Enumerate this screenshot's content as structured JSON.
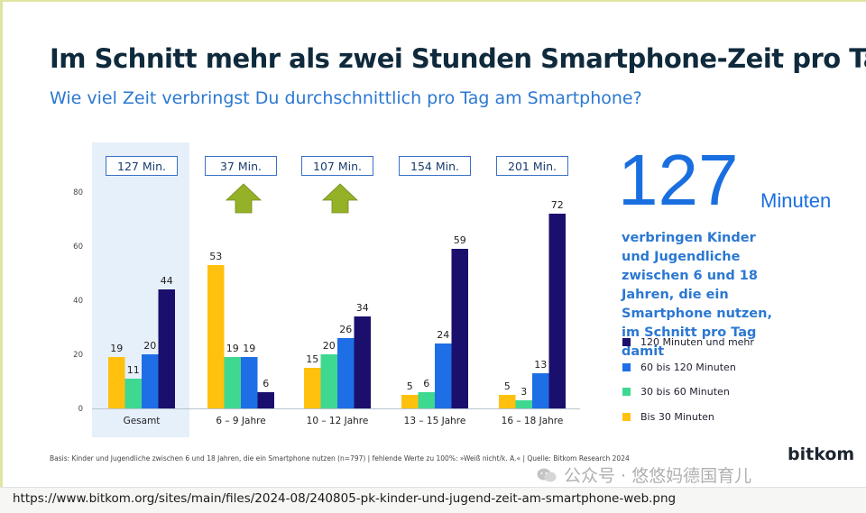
{
  "title": "Im Schnitt mehr als zwei Stunden Smartphone-Zeit pro Tag",
  "subtitle": "Wie viel Zeit verbringst Du durchschnittlich pro Tag am Smartphone?",
  "colors": {
    "bis30": "#ffc10e",
    "30bis60": "#3fd891",
    "60bis120": "#1e6ee6",
    "120plus": "#1b0f6d",
    "highlight": "#e6f0fb",
    "arrow": "#94b128",
    "accent": "#1a6fe0"
  },
  "chart_data": {
    "type": "bar",
    "categories": [
      "Gesamt",
      "6 – 9 Jahre",
      "10 – 12 Jahre",
      "13 – 15 Jahre",
      "16 – 18 Jahre"
    ],
    "series": [
      {
        "name": "Bis 30 Minuten",
        "color_key": "bis30",
        "values": [
          19,
          53,
          15,
          5,
          5
        ]
      },
      {
        "name": "30 bis 60 Minuten",
        "color_key": "30bis60",
        "values": [
          11,
          19,
          20,
          6,
          3
        ]
      },
      {
        "name": "60 bis 120 Minuten",
        "color_key": "60bis120",
        "values": [
          20,
          19,
          26,
          24,
          13
        ]
      },
      {
        "name": "120 Minuten und mehr",
        "color_key": "120plus",
        "values": [
          44,
          6,
          34,
          59,
          72
        ]
      }
    ],
    "totals": [
      "127 Min.",
      "37 Min.",
      "107 Min.",
      "154 Min.",
      "201 Min."
    ],
    "arrow_categories": [
      "6 – 9 Jahre",
      "10 – 12 Jahre"
    ],
    "highlighted_category": "Gesamt",
    "ylim": [
      0,
      80
    ],
    "yticks": [
      0,
      20,
      40,
      60,
      80
    ],
    "legend_position": "right",
    "grid": false
  },
  "highlight": {
    "number": "127",
    "unit": "Minuten",
    "text": "verbringen Kinder und Jugendliche zwischen 6 und 18 Jahren, die ein Smartphone nutzen, im Schnitt pro Tag damit"
  },
  "legend": [
    {
      "label": "120 Minuten und mehr",
      "color_key": "120plus"
    },
    {
      "label": "60 bis 120 Minuten",
      "color_key": "60bis120"
    },
    {
      "label": "30 bis 60 Minuten",
      "color_key": "30bis60"
    },
    {
      "label": "Bis 30 Minuten",
      "color_key": "bis30"
    }
  ],
  "footnote": "Basis: Kinder und Jugendliche zwischen 6 und 18 Jahren, die ein Smartphone nutzen (n=797) | fehlende Werte zu 100%: »Weiß nicht/k. A.« | Quelle: Bitkom Research 2024",
  "logo": "bitkom",
  "watermark": "公众号 · 悠悠妈德国育儿",
  "url": "https://www.bitkom.org/sites/main/files/2024-08/240805-pk-kinder-und-jugend-zeit-am-smartphone-web.png"
}
